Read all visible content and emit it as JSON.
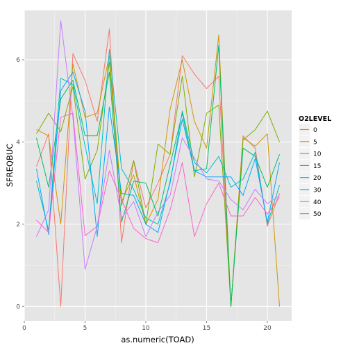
{
  "chart_data": {
    "type": "line",
    "xlabel": "as.numeric(TOAD)",
    "ylabel": "SFREQBUC",
    "xlim": [
      0,
      22
    ],
    "ylim": [
      -0.35,
      7.2
    ],
    "xticks": [
      0,
      5,
      10,
      15,
      20
    ],
    "yticks": [
      0,
      2,
      4,
      6
    ],
    "grid": true,
    "legend_position": "right",
    "legend_title": "O2LEVEL",
    "x": [
      1,
      2,
      3,
      4,
      5,
      6,
      7,
      8,
      9,
      10,
      11,
      12,
      13,
      14,
      15,
      16,
      17,
      18,
      19,
      20,
      21
    ],
    "series": [
      {
        "name": "0",
        "color": "#F8766D",
        "values": [
          3.4,
          4.2,
          0.0,
          6.15,
          5.5,
          4.5,
          6.75,
          1.55,
          3.55,
          2.4,
          3.0,
          3.7,
          6.1,
          5.65,
          5.3,
          5.6,
          0.0,
          4.15,
          3.85,
          1.95,
          2.75
        ]
      },
      {
        "name": "5",
        "color": "#CD9600",
        "values": [
          4.3,
          4.15,
          2.0,
          5.9,
          4.6,
          4.7,
          6.1,
          2.55,
          3.2,
          2.0,
          2.6,
          4.8,
          6.0,
          4.5,
          3.85,
          6.6,
          0.0,
          4.1,
          3.9,
          4.2,
          0.0
        ]
      },
      {
        "name": "10",
        "color": "#7CAE00",
        "values": [
          4.2,
          4.7,
          4.25,
          5.35,
          3.1,
          3.8,
          5.95,
          2.45,
          3.55,
          2.0,
          3.95,
          3.7,
          5.6,
          3.15,
          4.7,
          4.9,
          0.0,
          4.05,
          4.3,
          4.75,
          4.0
        ]
      },
      {
        "name": "15",
        "color": "#00BE67",
        "values": [
          4.1,
          2.9,
          5.05,
          5.5,
          4.15,
          4.15,
          5.7,
          2.05,
          3.05,
          3.0,
          2.2,
          3.45,
          4.7,
          3.3,
          3.35,
          6.35,
          0.0,
          3.85,
          3.65,
          2.9,
          3.7
        ]
      },
      {
        "name": "20",
        "color": "#00BFC4",
        "values": [
          3.05,
          1.85,
          5.55,
          5.4,
          3.9,
          2.5,
          6.25,
          3.35,
          2.85,
          2.15,
          2.0,
          3.0,
          4.75,
          3.5,
          3.25,
          3.65,
          2.9,
          3.1,
          3.75,
          2.0,
          2.95
        ]
      },
      {
        "name": "30",
        "color": "#00A9FF",
        "values": [
          3.35,
          1.75,
          5.25,
          5.7,
          4.75,
          1.7,
          4.85,
          2.75,
          2.7,
          2.0,
          1.8,
          3.05,
          4.55,
          3.3,
          3.15,
          3.15,
          3.15,
          2.7,
          3.6,
          2.05,
          3.5
        ]
      },
      {
        "name": "40",
        "color": "#C77CFF",
        "values": [
          1.7,
          2.35,
          6.95,
          4.6,
          0.9,
          1.95,
          3.8,
          2.15,
          2.55,
          1.7,
          2.3,
          2.7,
          4.1,
          3.6,
          3.1,
          3.05,
          2.6,
          2.35,
          2.85,
          2.5,
          2.7
        ]
      },
      {
        "name": "50",
        "color": "#FF61CC",
        "values": [
          2.1,
          1.8,
          4.6,
          4.7,
          1.72,
          1.95,
          3.3,
          2.6,
          1.9,
          1.65,
          1.55,
          2.35,
          3.5,
          1.7,
          2.5,
          3.0,
          2.2,
          2.2,
          2.65,
          2.25,
          2.65
        ]
      }
    ]
  }
}
